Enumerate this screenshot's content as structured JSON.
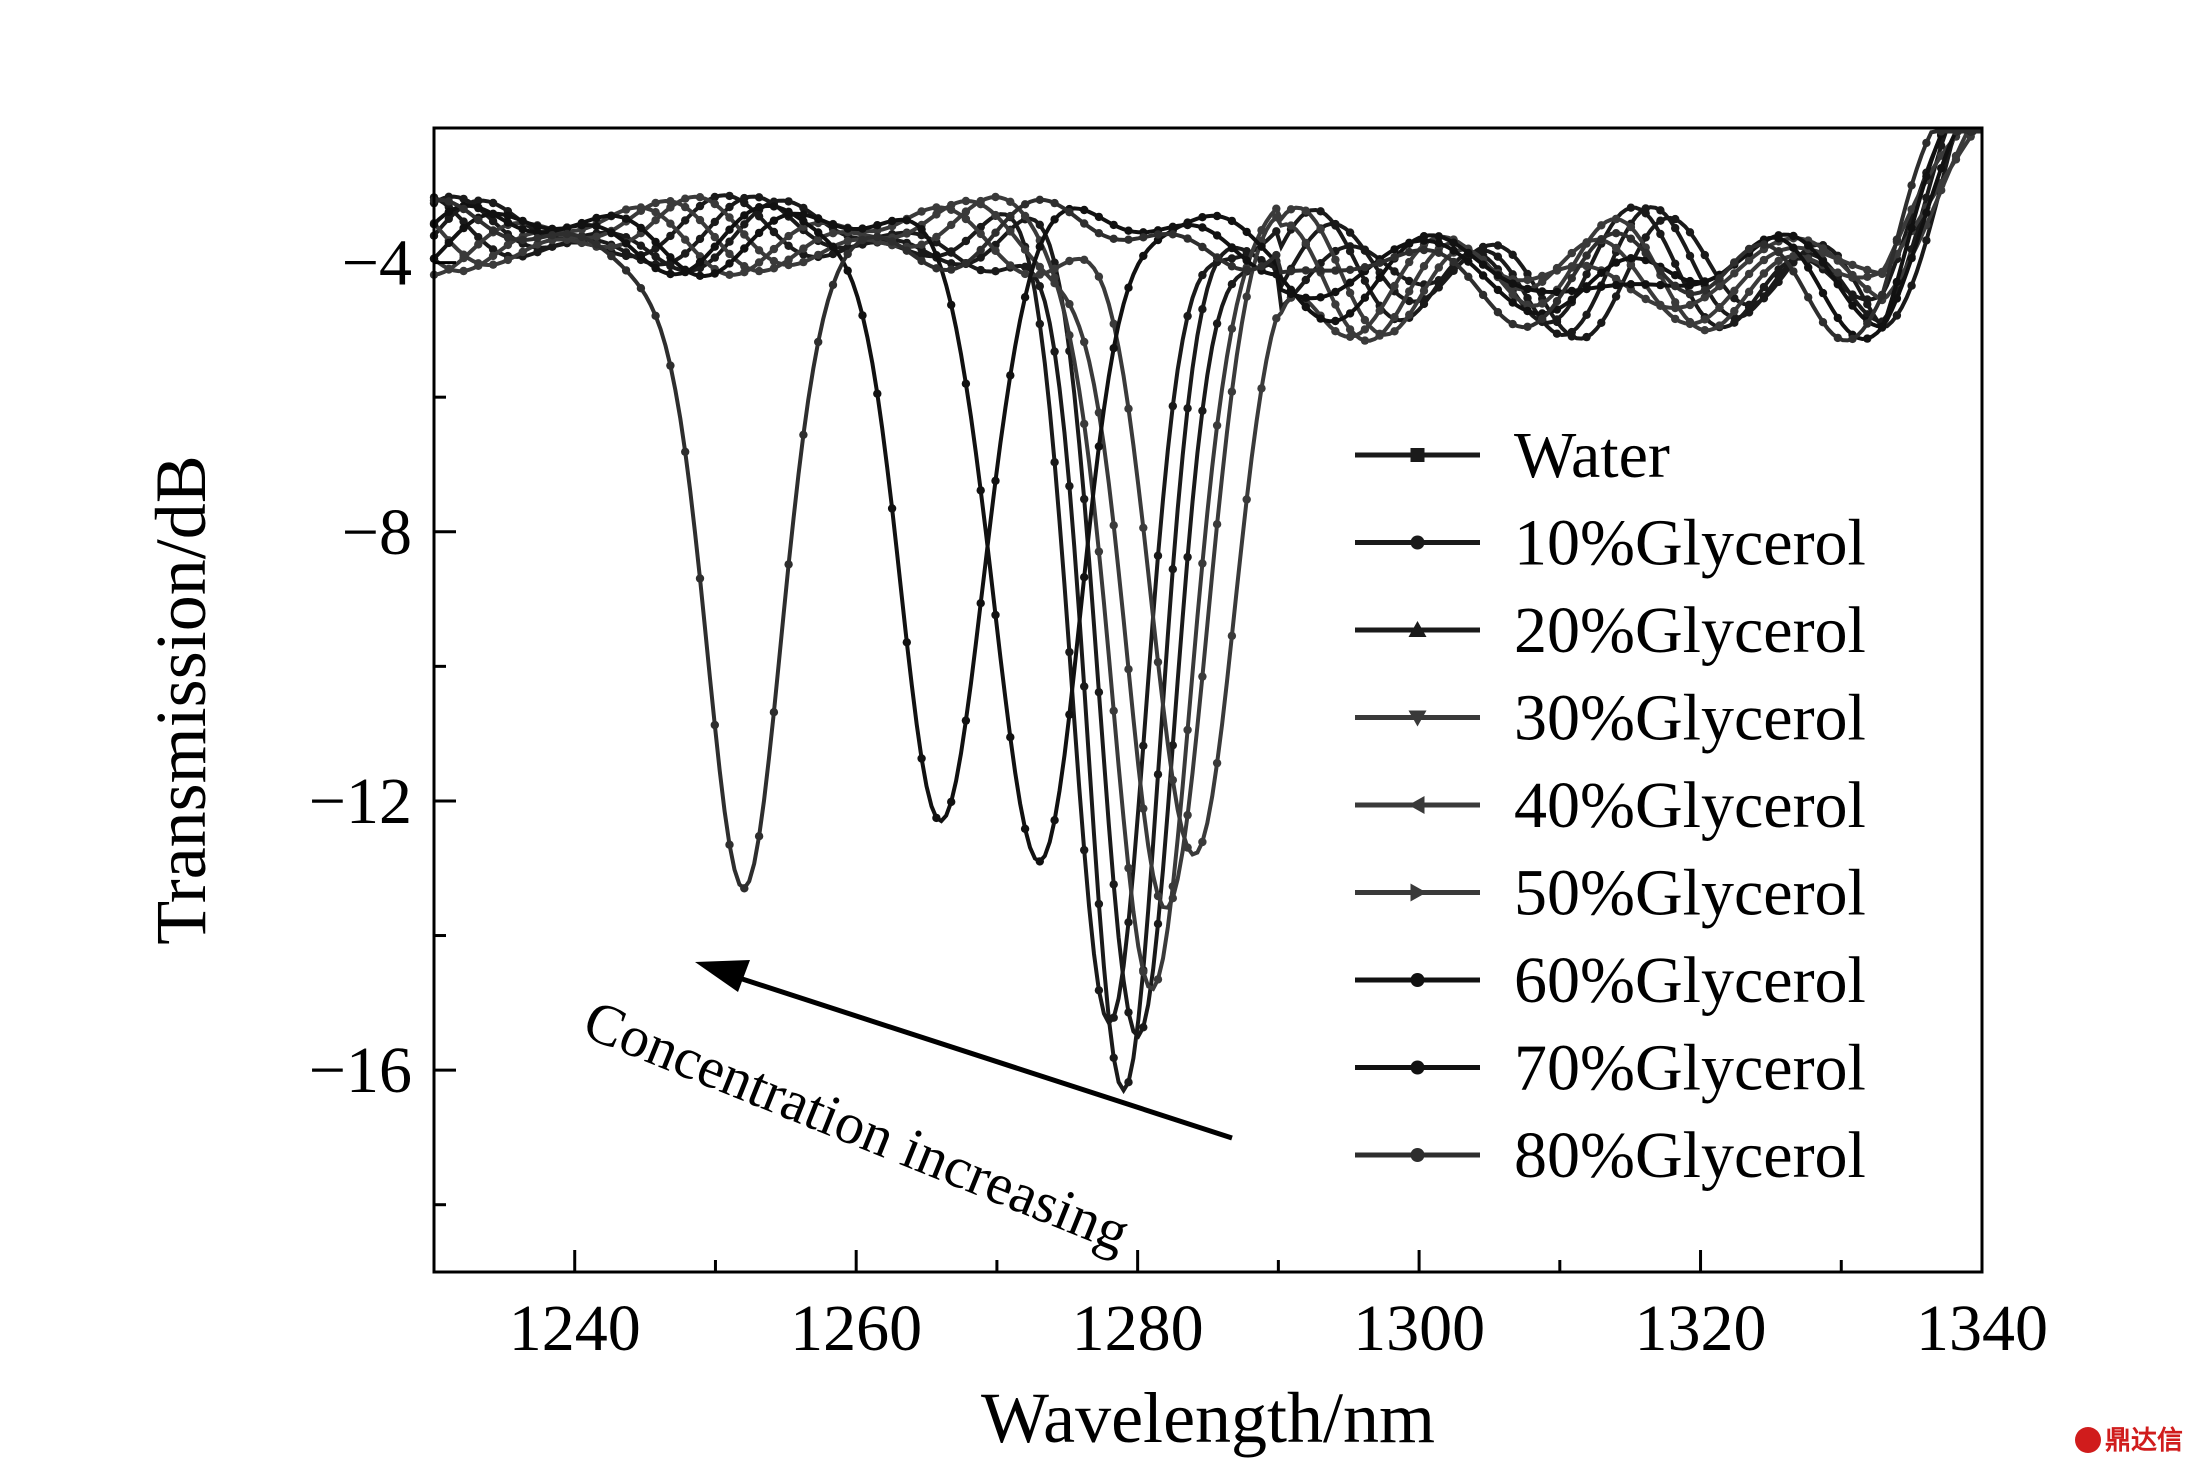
{
  "chart_data": {
    "type": "line",
    "xlabel": "Wavelength/nm",
    "ylabel": "Transmission/dB",
    "xlim": [
      1230,
      1340
    ],
    "ylim": [
      -19,
      -2
    ],
    "xticks": [
      1240,
      1260,
      1280,
      1300,
      1320,
      1340
    ],
    "yticks": [
      -4,
      -8,
      -12,
      -16
    ],
    "ytick_labels": [
      "−4",
      "−8",
      "−12",
      "−16"
    ],
    "grid": false,
    "legend_position": "right",
    "annotation": "Concentration increasing",
    "series": [
      {
        "name": "Water",
        "color": "#1a1a1a",
        "marker": "square",
        "dip_x": 1279,
        "dip_y": -16.3,
        "width": 3.6
      },
      {
        "name": "10%Glycerol",
        "color": "#1a1a1a",
        "marker": "circle",
        "dip_x": 1280,
        "dip_y": -15.5,
        "width": 3.7
      },
      {
        "name": "20%Glycerol",
        "color": "#1a1a1a",
        "marker": "triangle-up",
        "dip_x": 1278,
        "dip_y": -15.3,
        "width": 3.6
      },
      {
        "name": "30%Glycerol",
        "color": "#3a3a3a",
        "marker": "triangle-down",
        "dip_x": 1281,
        "dip_y": -14.8,
        "width": 3.9
      },
      {
        "name": "40%Glycerol",
        "color": "#3a3a3a",
        "marker": "triangle-left",
        "dip_x": 1282,
        "dip_y": -13.6,
        "width": 4.0
      },
      {
        "name": "50%Glycerol",
        "color": "#3a3a3a",
        "marker": "triangle-right",
        "dip_x": 1284,
        "dip_y": -12.8,
        "width": 4.2
      },
      {
        "name": "60%Glycerol",
        "color": "#111111",
        "marker": "circle",
        "dip_x": 1273,
        "dip_y": -12.9,
        "width": 4.2
      },
      {
        "name": "70%Glycerol",
        "color": "#111111",
        "marker": "circle",
        "dip_x": 1266,
        "dip_y": -12.3,
        "width": 4.0
      },
      {
        "name": "80%Glycerol",
        "color": "#2e2e2e",
        "marker": "circle",
        "dip_x": 1252,
        "dip_y": -13.3,
        "width": 3.9
      }
    ]
  },
  "watermark": {
    "text": "鼎达信",
    "color": "#d01c1c"
  }
}
